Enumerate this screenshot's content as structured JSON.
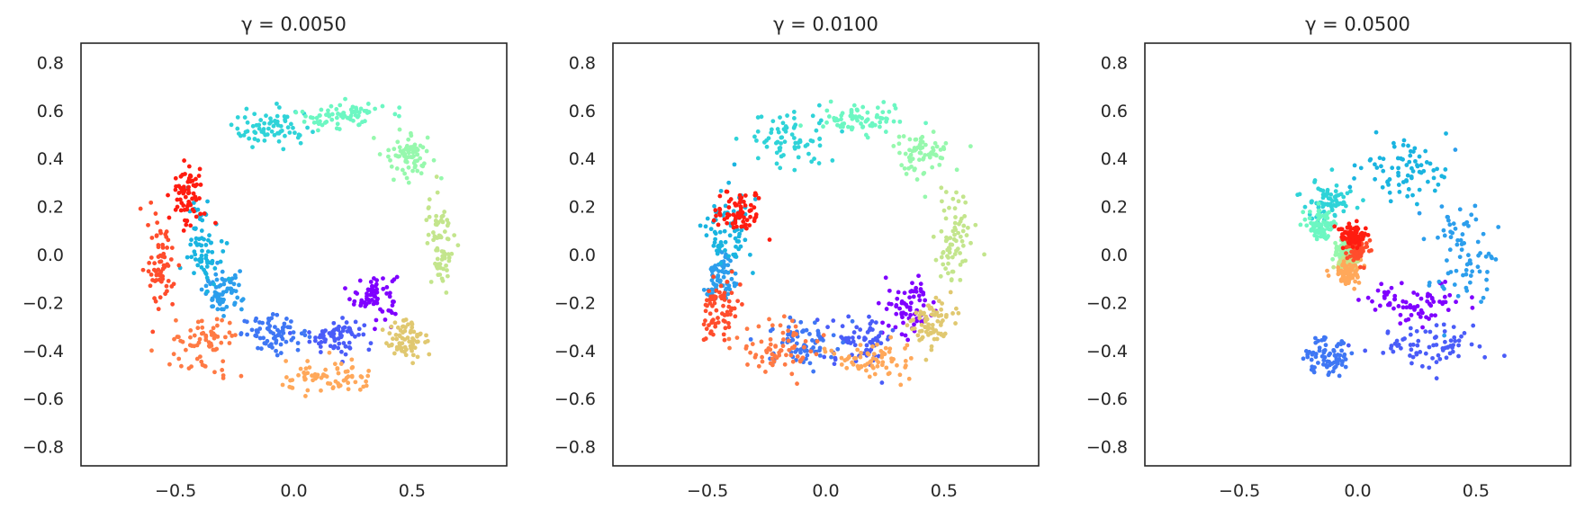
{
  "figure": {
    "panels": [
      {
        "title": "γ = 0.0050"
      },
      {
        "title": "γ = 0.0100"
      },
      {
        "title": "γ = 0.0500"
      }
    ]
  },
  "chart_data": [
    {
      "type": "scatter",
      "title": "γ = 0.0050",
      "xlabel": "",
      "ylabel": "",
      "xlim": [
        -0.9,
        0.9
      ],
      "ylim": [
        -0.88,
        0.88
      ],
      "xticks": [
        -0.5,
        0.0,
        0.5
      ],
      "yticks": [
        -0.8,
        -0.6,
        -0.4,
        -0.2,
        0.0,
        0.2,
        0.4,
        0.6,
        0.8
      ],
      "grid": false,
      "colormap": "rainbow",
      "point_count": 1000,
      "regions": [
        {
          "color": "#7f00ff",
          "center": [
            0.34,
            -0.17
          ],
          "spread": [
            0.07,
            0.07
          ]
        },
        {
          "color": "#4a5cf8",
          "center": [
            0.18,
            -0.34
          ],
          "spread": [
            0.08,
            0.05
          ]
        },
        {
          "color": "#3f77f4",
          "center": [
            -0.08,
            -0.33
          ],
          "spread": [
            0.1,
            0.05
          ]
        },
        {
          "color": "#2c9eec",
          "center": [
            -0.3,
            -0.16
          ],
          "spread": [
            0.06,
            0.06
          ]
        },
        {
          "color": "#1ab4e0",
          "center": [
            -0.38,
            0.05
          ],
          "spread": [
            0.05,
            0.12
          ]
        },
        {
          "color": "#2fd3d8",
          "center": [
            -0.1,
            0.52
          ],
          "spread": [
            0.12,
            0.06
          ]
        },
        {
          "color": "#6cf7c2",
          "center": [
            0.2,
            0.58
          ],
          "spread": [
            0.13,
            0.04
          ]
        },
        {
          "color": "#96f8ad",
          "center": [
            0.48,
            0.42
          ],
          "spread": [
            0.07,
            0.07
          ]
        },
        {
          "color": "#c3e58c",
          "center": [
            0.62,
            0.05
          ],
          "spread": [
            0.04,
            0.14
          ]
        },
        {
          "color": "#e0c870",
          "center": [
            0.48,
            -0.35
          ],
          "spread": [
            0.07,
            0.07
          ]
        },
        {
          "color": "#ffa85a",
          "center": [
            0.15,
            -0.52
          ],
          "spread": [
            0.15,
            0.05
          ]
        },
        {
          "color": "#ff7a44",
          "center": [
            -0.38,
            -0.38
          ],
          "spread": [
            0.1,
            0.09
          ]
        },
        {
          "color": "#ff4d2c",
          "center": [
            -0.56,
            -0.05
          ],
          "spread": [
            0.04,
            0.13
          ]
        },
        {
          "color": "#ff1c10",
          "center": [
            -0.45,
            0.24
          ],
          "spread": [
            0.05,
            0.09
          ]
        }
      ]
    },
    {
      "type": "scatter",
      "title": "γ = 0.0100",
      "xlabel": "",
      "ylabel": "",
      "xlim": [
        -0.9,
        0.9
      ],
      "ylim": [
        -0.88,
        0.88
      ],
      "xticks": [
        -0.5,
        0.0,
        0.5
      ],
      "yticks": [
        -0.8,
        -0.6,
        -0.4,
        -0.2,
        0.0,
        0.2,
        0.4,
        0.6,
        0.8
      ],
      "grid": false,
      "colormap": "rainbow",
      "point_count": 1000,
      "regions": [
        {
          "color": "#7f00ff",
          "center": [
            0.36,
            -0.22
          ],
          "spread": [
            0.08,
            0.08
          ]
        },
        {
          "color": "#4a5cf8",
          "center": [
            0.15,
            -0.36
          ],
          "spread": [
            0.1,
            0.07
          ]
        },
        {
          "color": "#3f77f4",
          "center": [
            -0.1,
            -0.36
          ],
          "spread": [
            0.1,
            0.07
          ]
        },
        {
          "color": "#2c9eec",
          "center": [
            -0.45,
            -0.1
          ],
          "spread": [
            0.05,
            0.08
          ]
        },
        {
          "color": "#1ab4e0",
          "center": [
            -0.42,
            0.1
          ],
          "spread": [
            0.08,
            0.12
          ]
        },
        {
          "color": "#2fd3d8",
          "center": [
            -0.15,
            0.48
          ],
          "spread": [
            0.13,
            0.08
          ]
        },
        {
          "color": "#6cf7c2",
          "center": [
            0.15,
            0.56
          ],
          "spread": [
            0.13,
            0.05
          ]
        },
        {
          "color": "#96f8ad",
          "center": [
            0.4,
            0.42
          ],
          "spread": [
            0.08,
            0.07
          ]
        },
        {
          "color": "#c3e58c",
          "center": [
            0.54,
            0.05
          ],
          "spread": [
            0.05,
            0.13
          ]
        },
        {
          "color": "#e0c870",
          "center": [
            0.45,
            -0.28
          ],
          "spread": [
            0.07,
            0.07
          ]
        },
        {
          "color": "#ffa85a",
          "center": [
            0.2,
            -0.44
          ],
          "spread": [
            0.12,
            0.05
          ]
        },
        {
          "color": "#ff7a44",
          "center": [
            -0.2,
            -0.38
          ],
          "spread": [
            0.12,
            0.08
          ]
        },
        {
          "color": "#ff4d2c",
          "center": [
            -0.45,
            -0.22
          ],
          "spread": [
            0.06,
            0.08
          ]
        },
        {
          "color": "#ff1c10",
          "center": [
            -0.36,
            0.18
          ],
          "spread": [
            0.07,
            0.07
          ]
        }
      ]
    },
    {
      "type": "scatter",
      "title": "γ = 0.0500",
      "xlabel": "",
      "ylabel": "",
      "xlim": [
        -0.9,
        0.9
      ],
      "ylim": [
        -0.88,
        0.88
      ],
      "xticks": [
        -0.5,
        0.0,
        0.5
      ],
      "yticks": [
        -0.8,
        -0.6,
        -0.4,
        -0.2,
        0.0,
        0.2,
        0.4,
        0.6,
        0.8
      ],
      "grid": false,
      "colormap": "rainbow",
      "point_count": 900,
      "regions": [
        {
          "color": "#7f00ff",
          "center": [
            0.25,
            -0.2
          ],
          "spread": [
            0.15,
            0.06
          ]
        },
        {
          "color": "#4a5cf8",
          "center": [
            0.3,
            -0.38
          ],
          "spread": [
            0.18,
            0.06
          ]
        },
        {
          "color": "#3f77f4",
          "center": [
            -0.12,
            -0.42
          ],
          "spread": [
            0.07,
            0.06
          ]
        },
        {
          "color": "#2c9eec",
          "center": [
            0.45,
            0.0
          ],
          "spread": [
            0.1,
            0.18
          ]
        },
        {
          "color": "#1ab4e0",
          "center": [
            0.2,
            0.35
          ],
          "spread": [
            0.14,
            0.09
          ]
        },
        {
          "color": "#2fd3d8",
          "center": [
            -0.12,
            0.22
          ],
          "spread": [
            0.07,
            0.06
          ]
        },
        {
          "color": "#6cf7c2",
          "center": [
            -0.16,
            0.12
          ],
          "spread": [
            0.04,
            0.04
          ]
        },
        {
          "color": "#96f8ad",
          "center": [
            -0.06,
            0.02
          ],
          "spread": [
            0.03,
            0.03
          ]
        },
        {
          "color": "#c3e58c",
          "center": [
            -0.05,
            -0.04
          ],
          "spread": [
            0.03,
            0.02
          ]
        },
        {
          "color": "#ffa85a",
          "center": [
            -0.05,
            -0.08
          ],
          "spread": [
            0.04,
            0.03
          ]
        },
        {
          "color": "#ff4d2c",
          "center": [
            0.0,
            0.02
          ],
          "spread": [
            0.03,
            0.04
          ]
        },
        {
          "color": "#ff1c10",
          "center": [
            -0.02,
            0.08
          ],
          "spread": [
            0.04,
            0.03
          ]
        }
      ]
    }
  ]
}
